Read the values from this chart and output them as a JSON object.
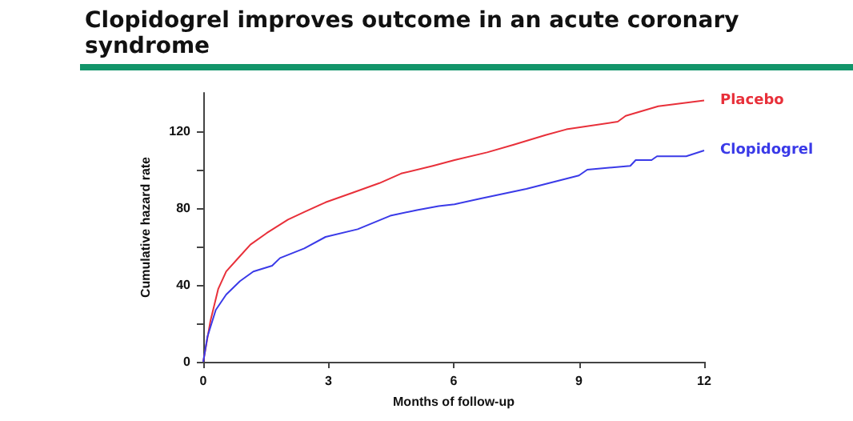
{
  "chart_data": {
    "type": "line",
    "title": "Clopidogrel improves outcome in an acute coronary syndrome",
    "xlabel": "Months of follow-up",
    "ylabel": "Cumulative hazard rate",
    "xlim": [
      0,
      12
    ],
    "xticks": [
      0,
      3,
      6,
      9,
      12
    ],
    "ylim": [
      0,
      140
    ],
    "yticks": [
      0,
      {
        "value": 20,
        "label": null
      },
      40,
      {
        "value": 60,
        "label": null
      },
      80,
      {
        "value": 100,
        "label": null
      },
      120
    ],
    "grid": false,
    "legend": false,
    "marker": "none",
    "line_style": "solid",
    "series": [
      {
        "name": "Placebo",
        "color": "#e8303a",
        "x": [
          0,
          0.17,
          0.36,
          0.55,
          0.88,
          1.13,
          1.52,
          2.03,
          2.42,
          2.93,
          3.58,
          4.22,
          4.74,
          5.5,
          6.02,
          6.8,
          7.44,
          8.2,
          8.7,
          9.93,
          10.12,
          10.9,
          12
        ],
        "values": [
          0,
          21,
          38,
          47,
          55,
          61,
          67,
          74,
          78,
          83,
          88,
          93,
          98,
          102,
          105,
          109,
          113,
          118,
          121,
          125,
          128,
          133,
          136
        ]
      },
      {
        "name": "Clopidogrel",
        "color": "#3a3ae8",
        "x": [
          0,
          0.1,
          0.3,
          0.55,
          0.88,
          1.2,
          1.65,
          1.84,
          2.42,
          2.93,
          3.7,
          4.48,
          5.12,
          5.64,
          6.02,
          6.65,
          7.74,
          9.0,
          9.2,
          10.23,
          10.36,
          10.74,
          10.87,
          11.57,
          12
        ],
        "values": [
          0,
          13,
          27,
          35,
          42,
          47,
          50,
          54,
          59,
          65,
          69,
          76,
          79,
          81,
          82,
          85,
          90,
          97,
          100,
          102,
          105,
          105,
          107,
          107,
          110
        ]
      }
    ]
  }
}
